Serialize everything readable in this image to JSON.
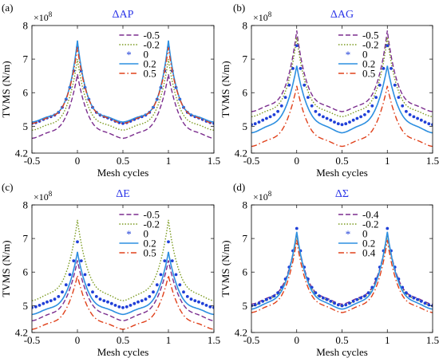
{
  "chart_data": [
    {
      "panel": "(a)",
      "type": "line",
      "title": "ΔAP",
      "xlabel": "Mesh cycles",
      "ylabel": "TVMS (N/m)",
      "y_exponent": "×10^8",
      "xlim": [
        -0.5,
        1.5
      ],
      "ylim": [
        4.2,
        8
      ],
      "xticks": [
        "-0.5",
        "0",
        "0.5",
        "1",
        "1.5"
      ],
      "yticks": [
        "4.2",
        "5",
        "6",
        "7",
        "8"
      ],
      "legend": "top-right",
      "series": [
        {
          "name": "-0.5",
          "style": "dashed",
          "color": "#7b2d8e",
          "base": 4.65,
          "peak": 6.55,
          "width": 0.12
        },
        {
          "name": "-0.2",
          "style": "dotted",
          "color": "#7a9a1f",
          "base": 4.9,
          "peak": 7.0,
          "width": 0.11
        },
        {
          "name": "0",
          "style": "markers",
          "color": "#1f3fd8",
          "base": 5.1,
          "peak": 7.35,
          "width": 0.11
        },
        {
          "name": "0.2",
          "style": "solid",
          "color": "#2d8fe0",
          "base": 5.15,
          "peak": 7.55,
          "width": 0.1
        },
        {
          "name": "0.5",
          "style": "dashdot",
          "color": "#e0401a",
          "base": 5.1,
          "peak": 7.35,
          "width": 0.11
        }
      ]
    },
    {
      "panel": "(b)",
      "type": "line",
      "title": "ΔAG",
      "xlabel": "Mesh cycles",
      "ylabel": "TVMS (N/m)",
      "y_exponent": "×10^8",
      "xlim": [
        -0.5,
        1.5
      ],
      "ylim": [
        4.2,
        8
      ],
      "xticks": [
        "-0.5",
        "0",
        "0.5",
        "1",
        "1.5"
      ],
      "yticks": [
        "4.2",
        "5",
        "6",
        "7",
        "8"
      ],
      "legend": "top-right",
      "series": [
        {
          "name": "-0.5",
          "style": "dashed",
          "color": "#7b2d8e",
          "base": 5.45,
          "peak": 7.85,
          "width": 0.11
        },
        {
          "name": "-0.2",
          "style": "dotted",
          "color": "#7a9a1f",
          "base": 5.3,
          "peak": 7.65,
          "width": 0.11
        },
        {
          "name": "0",
          "style": "markers",
          "color": "#1f3fd8",
          "base": 5.05,
          "peak": 7.4,
          "width": 0.12
        },
        {
          "name": "0.2",
          "style": "solid",
          "color": "#2d8fe0",
          "base": 4.8,
          "peak": 6.8,
          "width": 0.13
        },
        {
          "name": "0.5",
          "style": "dashdot",
          "color": "#e0401a",
          "base": 4.4,
          "peak": 6.2,
          "width": 0.13
        }
      ]
    },
    {
      "panel": "(c)",
      "type": "line",
      "title": "ΔE",
      "xlabel": "Mesh cycles",
      "ylabel": "TVMS (N/m)",
      "y_exponent": "×10^8",
      "xlim": [
        -0.5,
        1.5
      ],
      "ylim": [
        4.2,
        8
      ],
      "xticks": [
        "-0.5",
        "0",
        "0.5",
        "1",
        "1.5"
      ],
      "yticks": [
        "4.2",
        "5",
        "6",
        "7",
        "8"
      ],
      "legend": "top-right",
      "series": [
        {
          "name": "-0.5",
          "style": "dashed",
          "color": "#7b2d8e",
          "base": 4.55,
          "peak": 6.35,
          "width": 0.13
        },
        {
          "name": "-0.2",
          "style": "dotted",
          "color": "#7a9a1f",
          "base": 5.15,
          "peak": 7.55,
          "width": 0.12
        },
        {
          "name": "0",
          "style": "markers",
          "color": "#1f3fd8",
          "base": 4.95,
          "peak": 6.9,
          "width": 0.12
        },
        {
          "name": "0.2",
          "style": "solid",
          "color": "#2d8fe0",
          "base": 4.75,
          "peak": 6.6,
          "width": 0.12
        },
        {
          "name": "0.5",
          "style": "dashdot",
          "color": "#e0401a",
          "base": 4.3,
          "peak": 5.9,
          "width": 0.13
        }
      ]
    },
    {
      "panel": "(d)",
      "type": "line",
      "title": "ΔΣ",
      "xlabel": "Mesh cycles",
      "ylabel": "TVMS (N/m)",
      "y_exponent": "×10^8",
      "xlim": [
        -0.5,
        1.5
      ],
      "ylim": [
        4.2,
        8
      ],
      "xticks": [
        "-0.5",
        "0",
        "0.5",
        "1",
        "1.5"
      ],
      "yticks": [
        "4.2",
        "5",
        "6",
        "7",
        "8"
      ],
      "legend": "top-right",
      "series": [
        {
          "name": "-0.4",
          "style": "dashed",
          "color": "#7b2d8e",
          "base": 5.05,
          "peak": 7.15,
          "width": 0.12
        },
        {
          "name": "-0.2",
          "style": "dotted",
          "color": "#7a9a1f",
          "base": 5.0,
          "peak": 7.1,
          "width": 0.12
        },
        {
          "name": "0",
          "style": "markers",
          "color": "#1f3fd8",
          "base": 5.0,
          "peak": 7.3,
          "width": 0.12
        },
        {
          "name": "0.2",
          "style": "solid",
          "color": "#2d8fe0",
          "base": 4.9,
          "peak": 7.2,
          "width": 0.12
        },
        {
          "name": "0.4",
          "style": "dashdot",
          "color": "#e0401a",
          "base": 4.8,
          "peak": 6.95,
          "width": 0.12
        }
      ]
    }
  ]
}
